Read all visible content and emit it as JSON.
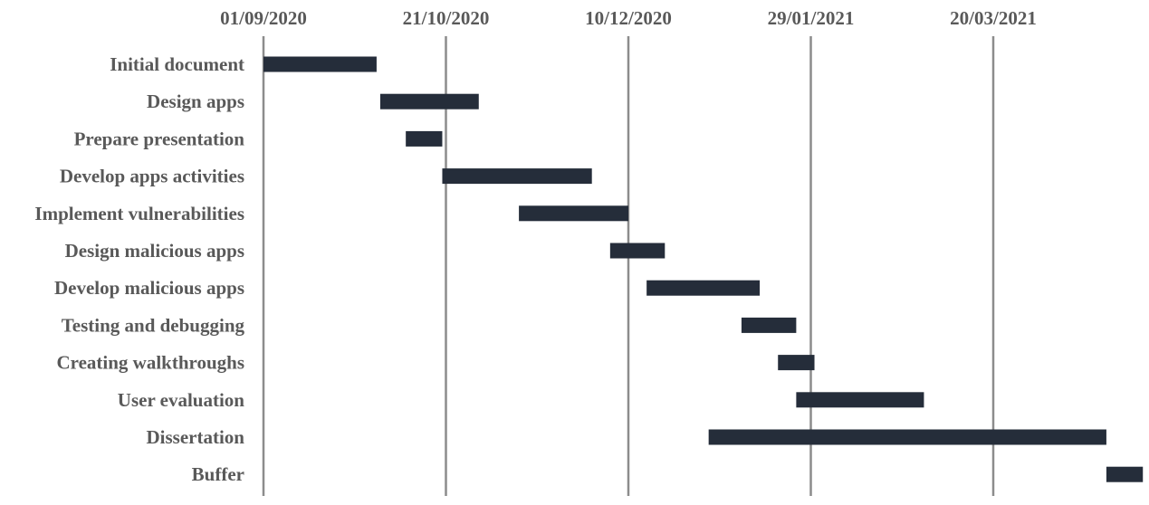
{
  "chart_data": {
    "type": "gantt",
    "title": "",
    "xlabel": "",
    "ylabel": "",
    "x_axis": {
      "kind": "date",
      "position": "top",
      "ticks": [
        "01/09/2020",
        "21/10/2020",
        "10/12/2020",
        "29/01/2021",
        "20/03/2021"
      ],
      "min": "2020-09-01",
      "max": "2021-04-11"
    },
    "grid": true,
    "legend": "none",
    "bar_color": "#252d3a",
    "gridline_color": "#8c8c8c",
    "text_color": "#595959",
    "tasks": [
      {
        "name": "Initial document",
        "start": "2020-09-01",
        "end": "2020-10-02"
      },
      {
        "name": "Design apps",
        "start": "2020-10-03",
        "end": "2020-10-30"
      },
      {
        "name": "Prepare presentation",
        "start": "2020-10-10",
        "end": "2020-10-20"
      },
      {
        "name": "Develop apps activities",
        "start": "2020-10-20",
        "end": "2020-11-30"
      },
      {
        "name": "Implement vulnerabilities",
        "start": "2020-11-10",
        "end": "2020-12-10"
      },
      {
        "name": "Design malicious apps",
        "start": "2020-12-05",
        "end": "2020-12-20"
      },
      {
        "name": "Develop malicious apps",
        "start": "2020-12-15",
        "end": "2021-01-15"
      },
      {
        "name": "Testing and debugging",
        "start": "2021-01-10",
        "end": "2021-01-25"
      },
      {
        "name": "Creating walkthroughs",
        "start": "2021-01-20",
        "end": "2021-01-30"
      },
      {
        "name": "User evaluation",
        "start": "2021-01-25",
        "end": "2021-03-01"
      },
      {
        "name": "Dissertation",
        "start": "2021-01-01",
        "end": "2021-04-20"
      },
      {
        "name": "Buffer",
        "start": "2021-04-20",
        "end": "2021-04-30"
      }
    ]
  }
}
